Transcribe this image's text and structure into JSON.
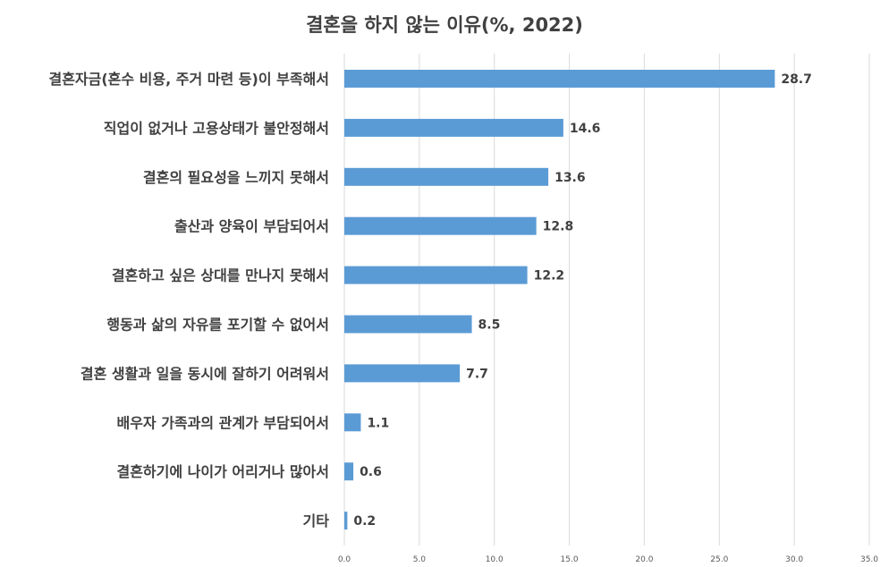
{
  "chart_data": {
    "type": "bar",
    "orientation": "horizontal",
    "title": "결혼을 하지 않는 이유(%, 2022)",
    "categories": [
      "결혼자금(혼수 비용, 주거 마련 등)이 부족해서",
      "직업이 없거나 고용상태가 불안정해서",
      "결혼의 필요성을 느끼지 못해서",
      "출산과 양육이 부담되어서",
      "결혼하고 싶은 상대를 만나지 못해서",
      "행동과 삶의 자유를 포기할 수 없어서",
      "결혼 생활과 일을 동시에 잘하기 어려워서",
      "배우자 가족과의 관계가 부담되어서",
      "결혼하기에 나이가 어리거나 많아서",
      "기타"
    ],
    "values": [
      28.7,
      14.6,
      13.6,
      12.8,
      12.2,
      8.5,
      7.7,
      1.1,
      0.6,
      0.2
    ],
    "value_labels": [
      "28.7",
      "14.6",
      "13.6",
      "12.8",
      "12.2",
      "8.5",
      "7.7",
      "1.1",
      "0.6",
      "0.2"
    ],
    "xlim": [
      0,
      35
    ],
    "x_ticks": [
      "0.0",
      "5.0",
      "10.0",
      "15.0",
      "20.0",
      "25.0",
      "30.0",
      "35.0"
    ],
    "x_tick_values": [
      0,
      5,
      10,
      15,
      20,
      25,
      30,
      35
    ],
    "grid": true,
    "legend": false,
    "bar_color": "#5b9bd5"
  }
}
